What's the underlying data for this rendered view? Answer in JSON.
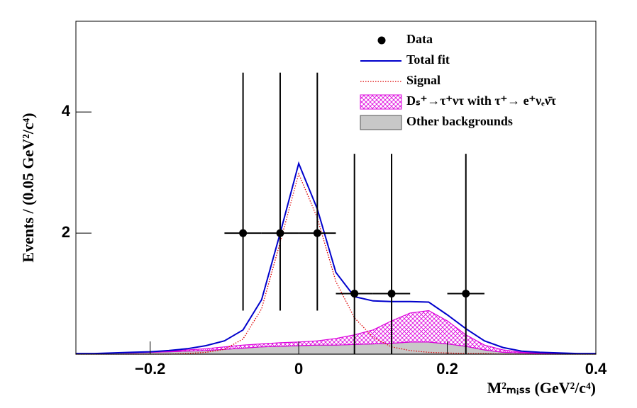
{
  "chart_data": {
    "type": "fit",
    "x_title": "M²ₘᵢₛₛ (GeV²/c⁴)",
    "y_title": "Events / (0.05 GeV²/c⁴)",
    "xlim": [
      -0.3,
      0.4
    ],
    "ylim": [
      0,
      5.5
    ],
    "xticks": [
      {
        "value": -0.2,
        "label": "−0.2"
      },
      0,
      0.2,
      0.4
    ],
    "yticks": [
      2,
      4
    ],
    "legend": "top-right",
    "data": {
      "name": "Data",
      "color": "#000000",
      "x": [
        -0.075,
        -0.025,
        0.025,
        0.075,
        0.125,
        0.225
      ],
      "values": [
        2,
        2,
        2,
        1,
        1,
        1
      ],
      "xerr": [
        0.025,
        0.025,
        0.025,
        0.025,
        0.025,
        0.025
      ],
      "yerr_low": [
        1.28,
        1.28,
        1.28,
        1,
        1,
        1
      ],
      "yerr_high": [
        2.65,
        2.65,
        2.65,
        2.31,
        2.31,
        2.31
      ]
    },
    "x": [
      -0.3,
      -0.275,
      -0.25,
      -0.225,
      -0.2,
      -0.175,
      -0.15,
      -0.125,
      -0.1,
      -0.075,
      -0.05,
      -0.025,
      0,
      0.025,
      0.05,
      0.075,
      0.1,
      0.125,
      0.15,
      0.175,
      0.2,
      0.225,
      0.25,
      0.275,
      0.3,
      0.325,
      0.35,
      0.375,
      0.4
    ],
    "series": [
      {
        "name": "Total fit",
        "color": "#0000cc",
        "style": "line",
        "values": [
          0.01,
          0.01,
          0.02,
          0.03,
          0.04,
          0.06,
          0.09,
          0.14,
          0.22,
          0.4,
          0.9,
          2.0,
          3.15,
          2.4,
          1.35,
          0.95,
          0.88,
          0.87,
          0.87,
          0.86,
          0.65,
          0.42,
          0.22,
          0.11,
          0.05,
          0.03,
          0.02,
          0.01,
          0.01
        ]
      },
      {
        "name": "Signal",
        "color": "#dd0000",
        "style": "dotted",
        "values": [
          0,
          0,
          0,
          0,
          0,
          0,
          0.01,
          0.03,
          0.08,
          0.25,
          0.75,
          1.85,
          2.98,
          2.25,
          1.2,
          0.6,
          0.28,
          0.12,
          0.06,
          0.03,
          0.02,
          0.01,
          0.01,
          0,
          0,
          0,
          0,
          0,
          0
        ]
      },
      {
        "name": "Dₛ⁺→τ⁺ντ with  τ⁺→ e⁺νₑν̄τ",
        "color": "#dd00dd",
        "style": "hatched",
        "values": [
          0,
          0,
          0,
          0.01,
          0.01,
          0.01,
          0.02,
          0.03,
          0.04,
          0.05,
          0.05,
          0.06,
          0.06,
          0.07,
          0.11,
          0.16,
          0.23,
          0.37,
          0.48,
          0.52,
          0.38,
          0.19,
          0.08,
          0.04,
          0.01,
          0.01,
          0,
          0,
          0
        ]
      },
      {
        "name": "Other backgrounds",
        "color": "#c8c8c8",
        "style": "area",
        "values": [
          0.01,
          0.01,
          0.02,
          0.02,
          0.03,
          0.04,
          0.05,
          0.06,
          0.08,
          0.1,
          0.12,
          0.13,
          0.14,
          0.15,
          0.15,
          0.16,
          0.17,
          0.18,
          0.2,
          0.2,
          0.17,
          0.13,
          0.07,
          0.03,
          0.02,
          0.01,
          0.01,
          0.01,
          0.01
        ]
      }
    ]
  }
}
